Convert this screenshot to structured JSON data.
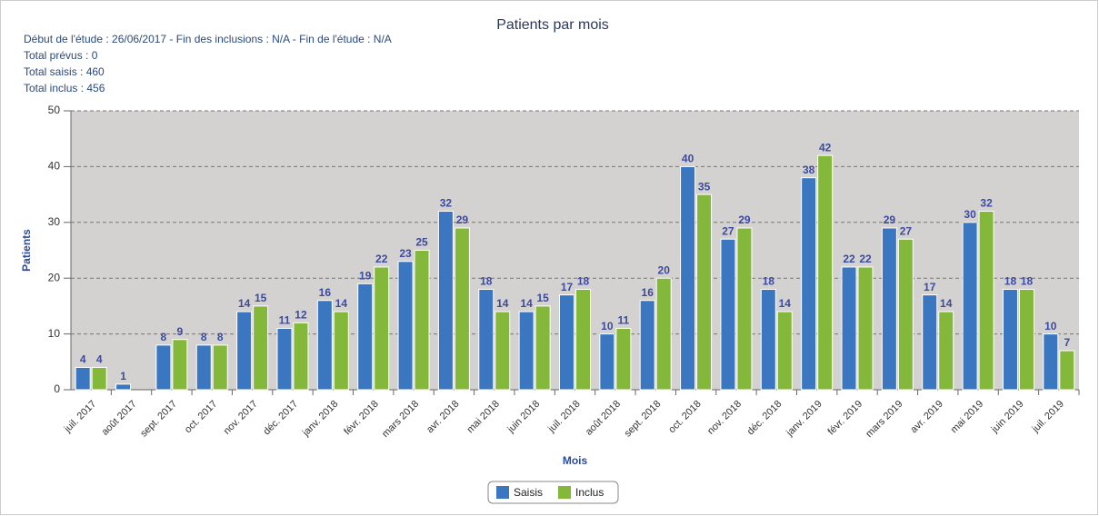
{
  "chart_data": {
    "type": "bar",
    "title": "Patients par mois",
    "subtitle": [
      "Début de l'étude : 26/06/2017 - Fin des inclusions : N/A - Fin de l'étude : N/A",
      "Total prévus : 0",
      "Total saisis : 460",
      "Total inclus : 456"
    ],
    "x_label": "Mois",
    "y_label": "Patients",
    "categories": [
      "juil. 2017",
      "août 2017",
      "sept. 2017",
      "oct. 2017",
      "nov. 2017",
      "déc. 2017",
      "janv. 2018",
      "févr. 2018",
      "mars 2018",
      "avr. 2018",
      "mai 2018",
      "juin 2018",
      "juil. 2018",
      "août 2018",
      "sept. 2018",
      "oct. 2018",
      "nov. 2018",
      "déc. 2018",
      "janv. 2019",
      "févr. 2019",
      "mars 2019",
      "avr. 2019",
      "mai 2019",
      "juin 2019",
      "juil. 2019"
    ],
    "series": [
      {
        "name": "Saisis",
        "color": "#3a77c0",
        "values": [
          4,
          1,
          8,
          8,
          14,
          11,
          16,
          19,
          23,
          32,
          18,
          14,
          17,
          10,
          16,
          40,
          27,
          18,
          38,
          22,
          29,
          17,
          30,
          18,
          10
        ]
      },
      {
        "name": "Inclus",
        "color": "#84b83a",
        "values": [
          4,
          null,
          9,
          8,
          15,
          12,
          14,
          22,
          25,
          29,
          14,
          15,
          18,
          11,
          20,
          35,
          29,
          14,
          42,
          22,
          27,
          14,
          32,
          18,
          7
        ]
      }
    ],
    "ylim": [
      0,
      50
    ],
    "yticks": [
      0,
      10,
      20,
      30,
      40,
      50
    ],
    "grid": true,
    "legend": "bottom"
  }
}
